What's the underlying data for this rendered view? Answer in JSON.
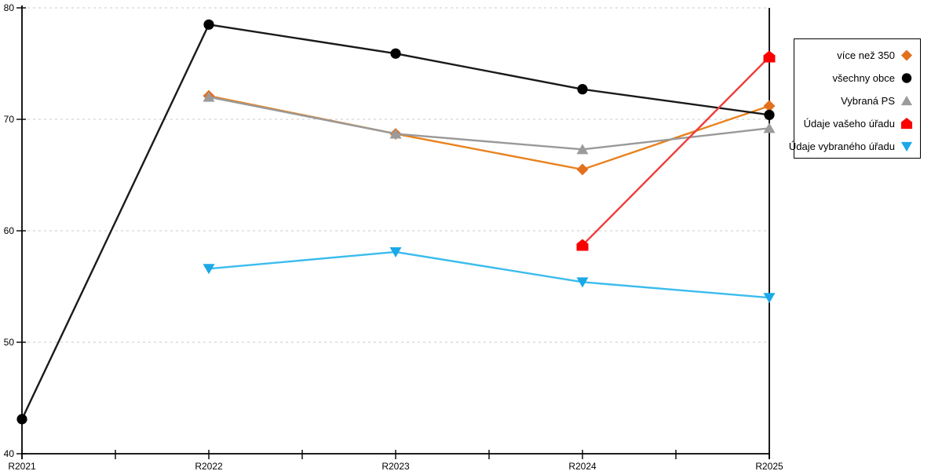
{
  "chart_data": {
    "type": "line",
    "title": "",
    "xlabel": "",
    "ylabel": "",
    "categories": [
      "R2021",
      "R2022",
      "R2023",
      "R2024",
      "R2025"
    ],
    "series": [
      {
        "name": "více než 350",
        "marker": "diamond",
        "marker_color": "#E2711D",
        "line_color": "#E8821E",
        "values": [
          null,
          72.1,
          68.7,
          65.5,
          71.2
        ]
      },
      {
        "name": "všechny obce",
        "marker": "circle",
        "marker_color": "#000000",
        "line_color": "#1A1A1A",
        "values": [
          43.1,
          78.5,
          75.9,
          72.7,
          70.4
        ]
      },
      {
        "name": "Vybraná PS",
        "marker": "triangle-up",
        "marker_color": "#9B9B9B",
        "line_color": "#999999",
        "values": [
          null,
          72.0,
          68.7,
          67.3,
          69.2
        ]
      },
      {
        "name": "Údaje vašeho úřadu",
        "marker": "pentagon",
        "marker_color": "#FB0000",
        "line_color": "#F03C3C",
        "values": [
          null,
          null,
          null,
          58.7,
          75.6
        ]
      },
      {
        "name": "Údaje vybraného úřadu",
        "marker": "triangle-down",
        "marker_color": "#1CA8E8",
        "line_color": "#3BBCEE",
        "values": [
          null,
          56.6,
          58.1,
          55.4,
          54.0
        ]
      }
    ],
    "ylim": [
      40,
      80
    ],
    "yticks": [
      40,
      50,
      60,
      70,
      80
    ],
    "grid": "horizontal-dotted",
    "grid_color": "#C8C8C8",
    "axis_color": "#000000",
    "background": "#FFFFFF",
    "legend_position": "right"
  }
}
